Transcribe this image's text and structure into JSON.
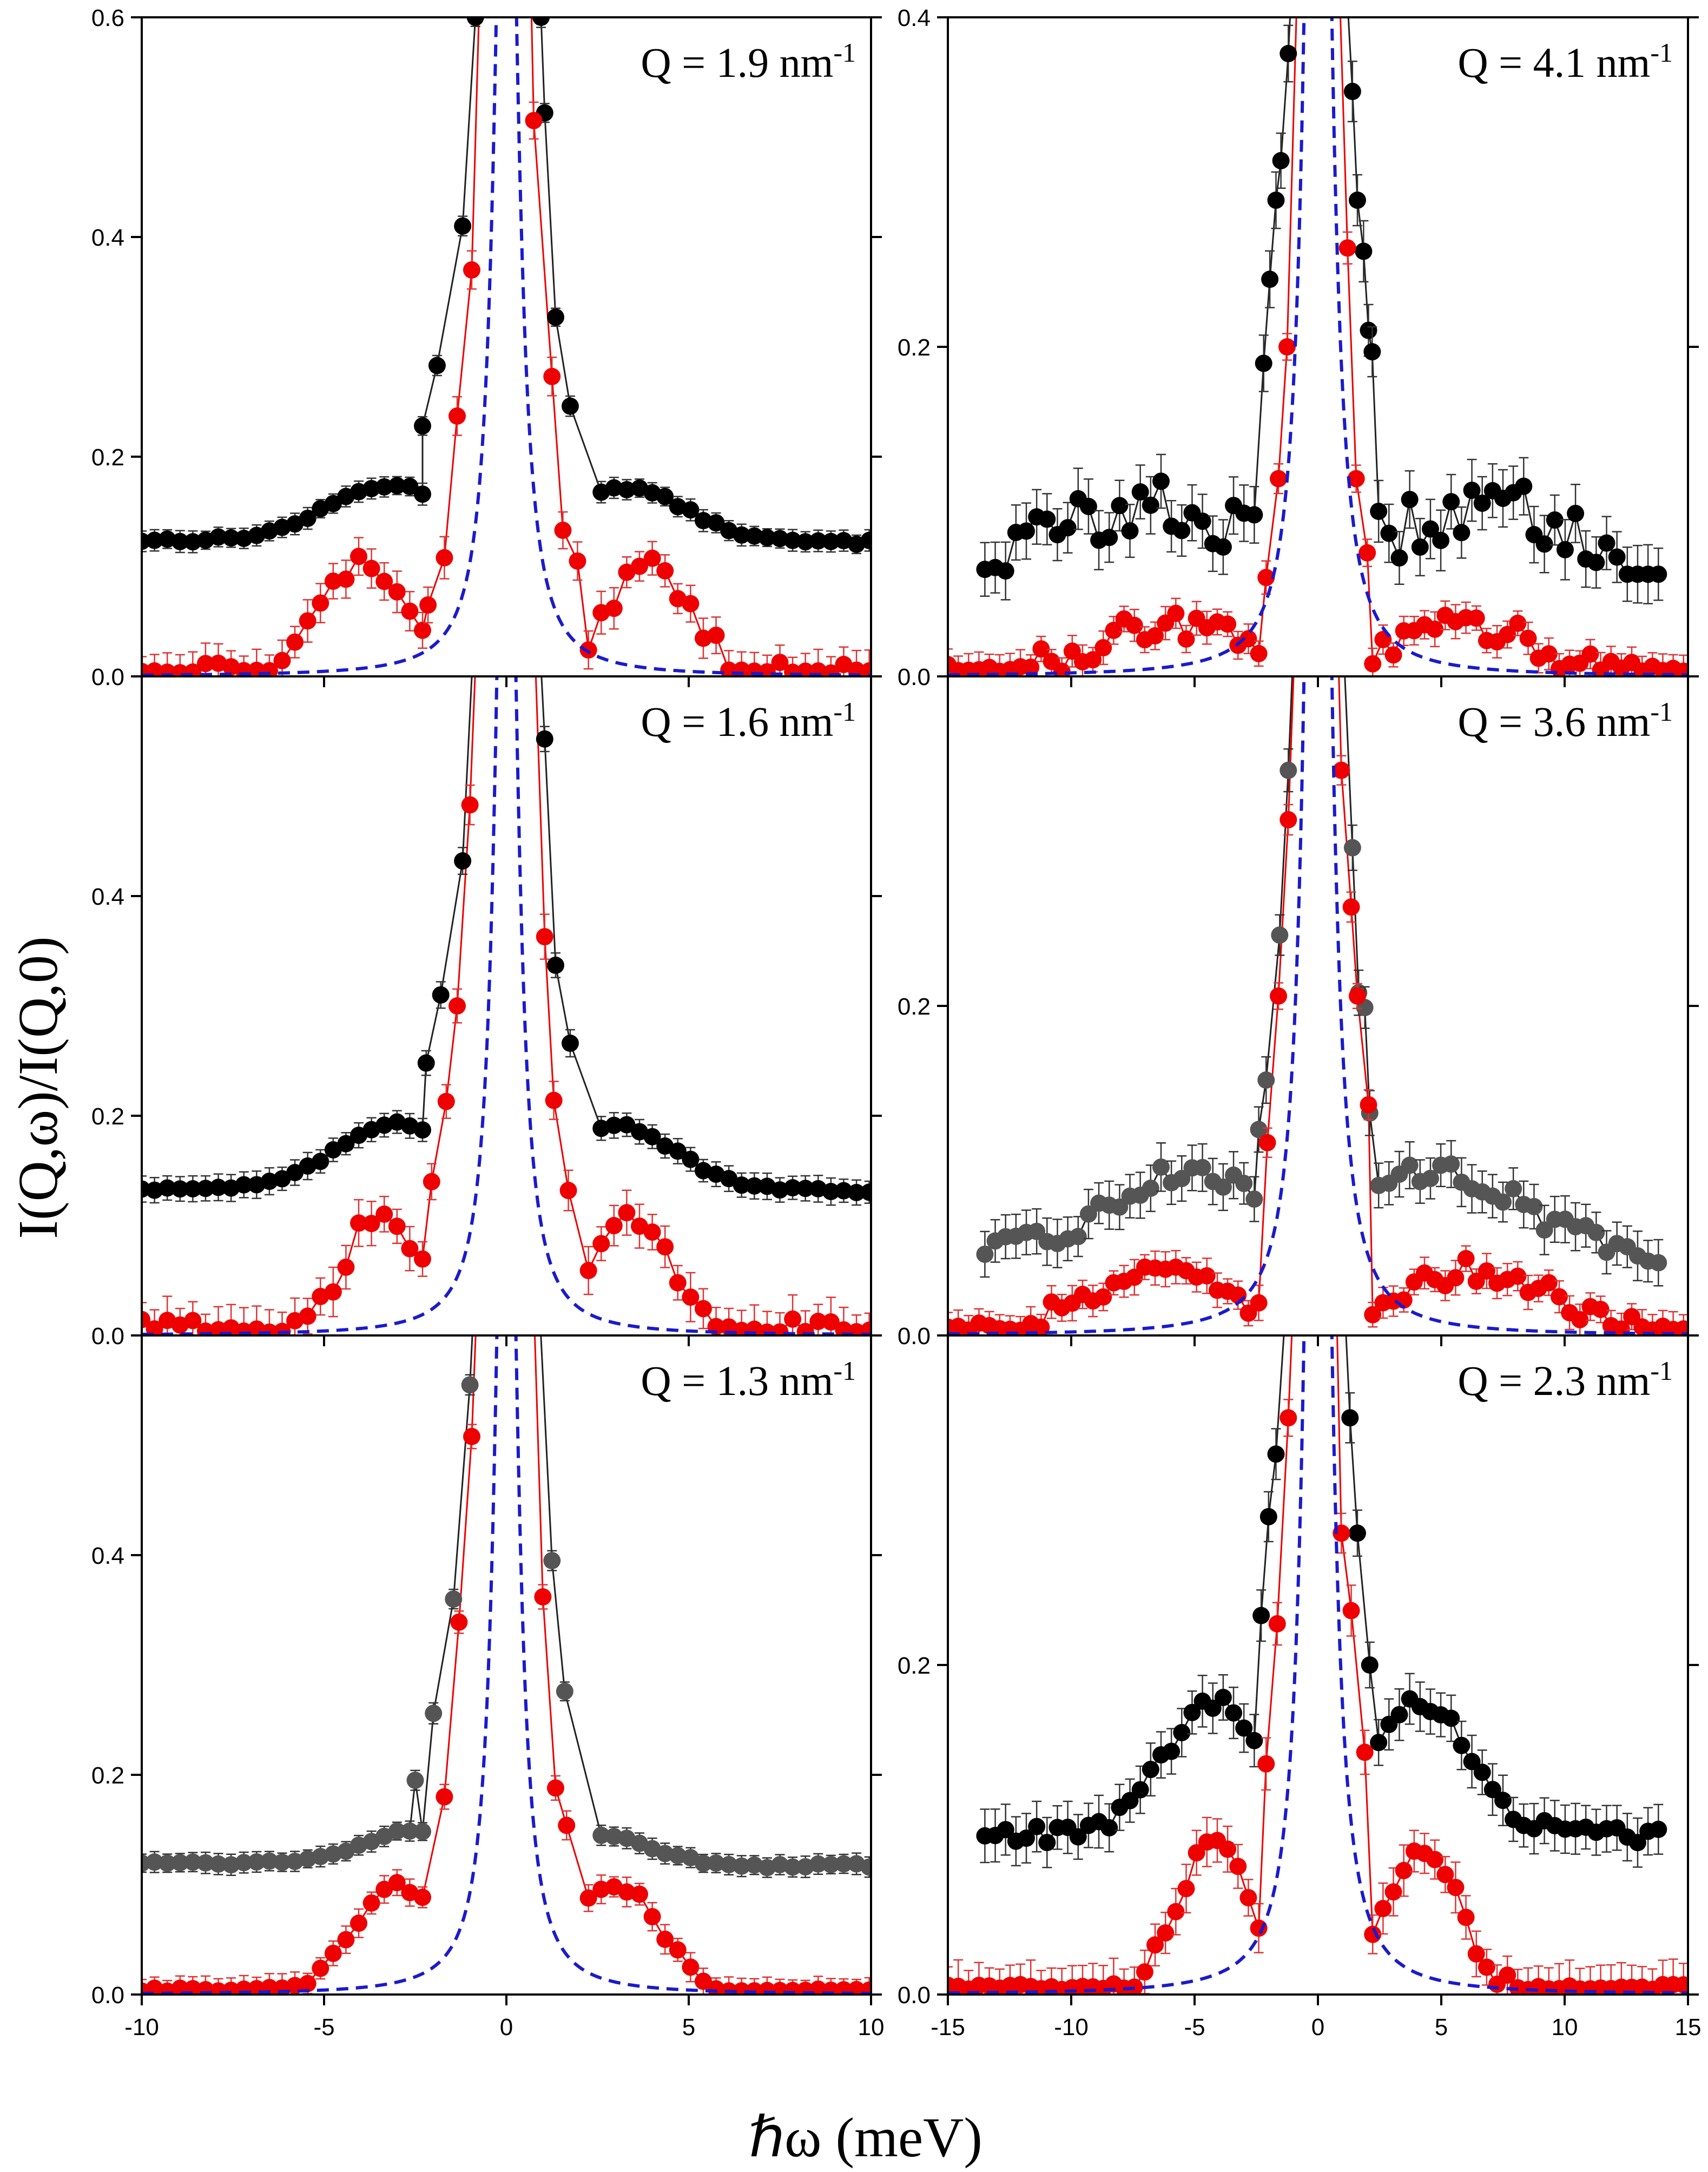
{
  "figure": {
    "ylabel": "I(Q,ω)/I(Q,0)",
    "xlabel": "ℏω (meV)"
  },
  "chart_data": [
    {
      "type": "scatter",
      "panel": "Q = 1.9",
      "title_prefix": "Q = 1.9 nm",
      "title_sup": "-1",
      "xlim": [
        -10,
        10
      ],
      "ylim": [
        0,
        0.6
      ],
      "xticks": [
        -10,
        -5,
        0,
        5,
        10
      ],
      "xtick_labels": [
        "-10",
        "-5",
        "0",
        "5",
        "10"
      ],
      "yticks": [
        0.0,
        0.2,
        0.4,
        0.6
      ],
      "ytick_labels": [
        "0.0",
        "0.2",
        "0.4",
        "0.6"
      ],
      "show_xticklabels": false,
      "resolution_hw": 0.34,
      "gray_base": false,
      "black": {
        "base": 0.122,
        "amp": 0.05,
        "center": 3.2,
        "width": 1.7,
        "asym": 0.002,
        "left_points": [
          [
            -1.2,
            0.41
          ],
          [
            -1.9,
            0.283
          ],
          [
            -2.3,
            0.228
          ],
          [
            -0.85,
            0.6
          ]
        ],
        "right_points": [
          [
            1.05,
            0.513
          ],
          [
            1.35,
            0.327
          ],
          [
            1.75,
            0.246
          ],
          [
            0.95,
            0.6
          ]
        ],
        "err": 0.008
      },
      "red": {
        "amp": 0.1,
        "center": 4.0,
        "width": 1.1,
        "noise": 0.025,
        "left_points": [
          [
            -0.95,
            0.37
          ],
          [
            -1.35,
            0.237
          ],
          [
            -1.7,
            0.108
          ],
          [
            -2.15,
            0.065
          ]
        ],
        "right_points": [
          [
            0.75,
            0.506
          ],
          [
            1.25,
            0.273
          ],
          [
            1.55,
            0.133
          ],
          [
            1.95,
            0.105
          ]
        ],
        "err": 0.022
      }
    },
    {
      "type": "scatter",
      "panel": "Q = 4.1",
      "title_prefix": "Q = 4.1 nm",
      "title_sup": "-1",
      "xlim": [
        -15,
        15
      ],
      "ylim": [
        0,
        0.4
      ],
      "xticks": [
        -15,
        -10,
        -5,
        0,
        5,
        10,
        15
      ],
      "xtick_labels": [
        "-15",
        "-10",
        "-5",
        "0",
        "5",
        "10",
        "15"
      ],
      "yticks": [
        0.0,
        0.2,
        0.4
      ],
      "ytick_labels": [
        "0.0",
        "0.2",
        "0.4"
      ],
      "show_xticklabels": false,
      "resolution_hw": 0.46,
      "gray_base": false,
      "black": {
        "base": 0.062,
        "amp": 0.04,
        "center": 7.0,
        "width": 4.0,
        "asym": 0.0,
        "xrange": [
          -13.5,
          14
        ],
        "left_points": [
          [
            -1.2,
            0.378
          ],
          [
            -1.5,
            0.313
          ],
          [
            -1.7,
            0.289
          ],
          [
            -1.95,
            0.241
          ],
          [
            -2.2,
            0.19
          ]
        ],
        "right_points": [
          [
            1.4,
            0.355
          ],
          [
            1.6,
            0.289
          ],
          [
            1.85,
            0.258
          ],
          [
            2.05,
            0.21
          ],
          [
            2.2,
            0.197
          ]
        ],
        "err": 0.015,
        "noise": 0.035,
        "tail_right": 0.062
      },
      "red": {
        "amp": 0.03,
        "center": 6.0,
        "width": 3.0,
        "noise": 0.02,
        "left_points": [
          [
            -1.25,
            0.2
          ],
          [
            -1.6,
            0.12
          ],
          [
            -2.1,
            0.06
          ]
        ],
        "right_points": [
          [
            1.2,
            0.26
          ],
          [
            1.55,
            0.12
          ],
          [
            2.0,
            0.075
          ]
        ],
        "err": 0.012
      }
    },
    {
      "type": "scatter",
      "panel": "Q = 1.6",
      "title_prefix": "Q = 1.6 nm",
      "title_sup": "-1",
      "xlim": [
        -10,
        10
      ],
      "ylim": [
        0,
        0.6
      ],
      "xticks": [
        -10,
        -5,
        0,
        5,
        10
      ],
      "xtick_labels": [
        "-10",
        "-5",
        "0",
        "5",
        "10"
      ],
      "yticks": [
        0.0,
        0.2,
        0.4
      ],
      "ytick_labels": [
        "0.0",
        "0.2",
        "0.4"
      ],
      "show_xticklabels": false,
      "resolution_hw": 0.32,
      "gray_base": false,
      "black": {
        "base": 0.132,
        "amp": 0.06,
        "center": 3.0,
        "width": 1.6,
        "asym": 0.002,
        "left_points": [
          [
            -1.2,
            0.432
          ],
          [
            -1.8,
            0.31
          ],
          [
            -2.2,
            0.248
          ]
        ],
        "right_points": [
          [
            1.05,
            0.543
          ],
          [
            1.35,
            0.337
          ],
          [
            1.75,
            0.266
          ]
        ],
        "err": 0.01
      },
      "red": {
        "amp": 0.11,
        "center": 3.3,
        "width": 1.1,
        "noise": 0.03,
        "left_points": [
          [
            -1.0,
            0.483
          ],
          [
            -1.35,
            0.3
          ],
          [
            -1.65,
            0.213
          ],
          [
            -2.05,
            0.14
          ]
        ],
        "right_points": [
          [
            1.05,
            0.363
          ],
          [
            1.3,
            0.214
          ],
          [
            1.7,
            0.132
          ]
        ],
        "err": 0.025
      }
    },
    {
      "type": "scatter",
      "panel": "Q = 3.6",
      "title_prefix": "Q = 3.6 nm",
      "title_sup": "-1",
      "xlim": [
        -15,
        15
      ],
      "ylim": [
        0,
        0.4
      ],
      "xticks": [
        -15,
        -10,
        -5,
        0,
        5,
        10,
        15
      ],
      "xtick_labels": [
        "-15",
        "-10",
        "-5",
        "0",
        "5",
        "10",
        "15"
      ],
      "yticks": [
        0.0,
        0.2
      ],
      "ytick_labels": [
        "0.0",
        "0.2"
      ],
      "show_xticklabels": false,
      "resolution_hw": 0.46,
      "gray_base": true,
      "black": {
        "base": 0.05,
        "amp": 0.05,
        "center": 5.0,
        "width": 3.2,
        "asym": 0.0,
        "xrange": [
          -13.5,
          14
        ],
        "left_points": [
          [
            -1.2,
            0.343
          ],
          [
            -1.55,
            0.243
          ],
          [
            -2.1,
            0.155
          ],
          [
            -2.4,
            0.125
          ]
        ],
        "right_points": [
          [
            1.4,
            0.296
          ],
          [
            1.65,
            0.208
          ],
          [
            1.9,
            0.199
          ],
          [
            2.1,
            0.135
          ]
        ],
        "err": 0.012,
        "noise": 0.015
      },
      "red": {
        "amp": 0.04,
        "center": 6.5,
        "width": 3.0,
        "noise": 0.015,
        "left_points": [
          [
            -1.2,
            0.313
          ],
          [
            -1.6,
            0.206
          ],
          [
            -2.05,
            0.117
          ]
        ],
        "right_points": [
          [
            0.95,
            0.343
          ],
          [
            1.35,
            0.26
          ],
          [
            1.6,
            0.206
          ],
          [
            2.05,
            0.14
          ]
        ],
        "err": 0.012
      }
    },
    {
      "type": "scatter",
      "panel": "Q = 1.3",
      "title_prefix": "Q = 1.3 nm",
      "title_sup": "-1",
      "xlim": [
        -10,
        10
      ],
      "ylim": [
        0,
        0.6
      ],
      "xticks": [
        -10,
        -5,
        0,
        5,
        10
      ],
      "xtick_labels": [
        "-10",
        "-5",
        "0",
        "5",
        "10"
      ],
      "yticks": [
        0.0,
        0.2,
        0.4
      ],
      "ytick_labels": [
        "0.0",
        "0.2",
        "0.4"
      ],
      "show_xticklabels": true,
      "resolution_hw": 0.32,
      "gray_base": true,
      "black": {
        "base": 0.117,
        "amp": 0.03,
        "center": 2.5,
        "width": 1.4,
        "asym": 0.003,
        "left_points": [
          [
            -1.0,
            0.555
          ],
          [
            -1.45,
            0.36
          ],
          [
            -2.0,
            0.256
          ],
          [
            -2.5,
            0.195
          ]
        ],
        "right_points": [
          [
            1.25,
            0.395
          ],
          [
            1.6,
            0.276
          ]
        ],
        "err": 0.008
      },
      "red": {
        "amp": 0.1,
        "center": 3.0,
        "width": 1.2,
        "noise": 0.01,
        "left_points": [
          [
            -0.95,
            0.508
          ],
          [
            -1.3,
            0.339
          ],
          [
            -1.7,
            0.18
          ]
        ],
        "right_points": [
          [
            1.0,
            0.362
          ],
          [
            1.35,
            0.188
          ],
          [
            1.65,
            0.154
          ]
        ],
        "err": 0.015
      }
    },
    {
      "type": "scatter",
      "panel": "Q = 2.3",
      "title_prefix": "Q = 2.3 nm",
      "title_sup": "-1",
      "xlim": [
        -15,
        15
      ],
      "ylim": [
        0,
        0.4
      ],
      "xticks": [
        -15,
        -10,
        -5,
        0,
        5,
        10,
        15
      ],
      "xtick_labels": [
        "-15",
        "-10",
        "-5",
        "0",
        "5",
        "10",
        "15"
      ],
      "yticks": [
        0.0,
        0.2
      ],
      "ytick_labels": [
        "0.0",
        "0.2"
      ],
      "show_xticklabels": true,
      "resolution_hw": 0.46,
      "gray_base": false,
      "black": {
        "base": 0.097,
        "amp": 0.08,
        "center": 4.2,
        "width": 2.0,
        "asym": 0.0,
        "xrange": [
          -13.5,
          14
        ],
        "left_points": [
          [
            -1.7,
            0.328
          ],
          [
            -2.0,
            0.29
          ],
          [
            -2.3,
            0.23
          ]
        ],
        "right_points": [
          [
            1.3,
            0.35
          ],
          [
            1.6,
            0.28
          ],
          [
            2.1,
            0.2
          ]
        ],
        "err": 0.013,
        "noise": 0.01
      },
      "red": {
        "amp": 0.09,
        "center": 4.2,
        "width": 1.5,
        "noise": 0.012,
        "left_points": [
          [
            -1.2,
            0.35
          ],
          [
            -1.65,
            0.225
          ],
          [
            -2.1,
            0.14
          ]
        ],
        "right_points": [
          [
            0.95,
            0.28
          ],
          [
            1.35,
            0.233
          ],
          [
            1.9,
            0.147
          ]
        ],
        "err": 0.018
      }
    }
  ]
}
